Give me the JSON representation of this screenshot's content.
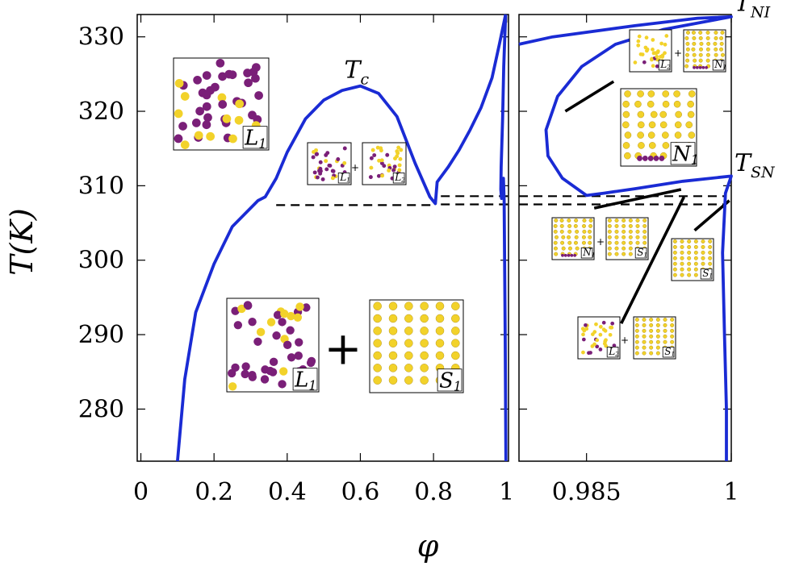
{
  "chart_data": {
    "type": "line",
    "xlabel": "φ",
    "ylabel": "T(K)",
    "ylim": [
      273,
      333
    ],
    "yticks": [
      280,
      290,
      300,
      310,
      320,
      330
    ],
    "colors": {
      "curve": "#1a2bd4",
      "tieline": "#000000",
      "particle_purple": "#7a1f78",
      "particle_yellow": "#f2d22a"
    },
    "panels": [
      {
        "name": "left",
        "xlim": [
          -0.01,
          1.005
        ],
        "xticks": [
          {
            "value": 0,
            "label": "0"
          },
          {
            "value": 0.2,
            "label": "0.2"
          },
          {
            "value": 0.4,
            "label": "0.4"
          },
          {
            "value": 0.6,
            "label": "0.6"
          },
          {
            "value": 0.8,
            "label": "0.8"
          },
          {
            "value": 1.0,
            "label": "1"
          }
        ],
        "series": [
          {
            "points": [
              [
                0.1,
                273
              ],
              [
                0.12,
                284
              ],
              [
                0.15,
                293
              ],
              [
                0.2,
                299.5
              ],
              [
                0.25,
                304.5
              ],
              [
                0.3,
                307
              ],
              [
                0.32,
                308
              ],
              [
                0.34,
                308.5
              ],
              [
                0.37,
                311
              ],
              [
                0.4,
                314.5
              ],
              [
                0.45,
                319
              ],
              [
                0.5,
                321.5
              ],
              [
                0.55,
                322.8
              ],
              [
                0.6,
                323.4
              ],
              [
                0.65,
                322.4
              ],
              [
                0.7,
                319.3
              ],
              [
                0.75,
                313
              ],
              [
                0.79,
                308.5
              ],
              [
                0.805,
                307.6
              ],
              [
                0.81,
                310.5
              ],
              [
                0.84,
                312.5
              ],
              [
                0.87,
                314.8
              ],
              [
                0.9,
                317.5
              ],
              [
                0.93,
                320.5
              ],
              [
                0.96,
                324.5
              ],
              [
                0.98,
                329
              ],
              [
                0.997,
                333
              ]
            ]
          },
          {
            "points": [
              [
                0.997,
                333
              ],
              [
                0.992,
                326
              ],
              [
                0.989,
                319
              ],
              [
                0.985,
                312.5
              ],
              [
                0.984,
                309.5
              ],
              [
                0.986,
                308.3
              ],
              [
                0.989,
                309.5
              ],
              [
                0.991,
                311
              ],
              [
                0.993,
                308
              ],
              [
                0.996,
                290
              ],
              [
                0.998,
                273
              ]
            ]
          }
        ],
        "tielines": [
          {
            "points": [
              [
                0.37,
                307.4
              ],
              [
                0.8,
                307.4
              ]
            ],
            "dashed": true
          },
          {
            "points": [
              [
                0.82,
                308.6
              ],
              [
                1.005,
                308.6
              ]
            ],
            "dashed": true
          },
          {
            "points": [
              [
                0.82,
                307.5
              ],
              [
                1.005,
                307.5
              ]
            ],
            "dashed": true
          }
        ],
        "annotations": [
          {
            "text": "T",
            "sub": "c",
            "x": 0.6,
            "y": 324.5
          }
        ]
      },
      {
        "name": "right",
        "xlim": [
          0.978,
          1.0
        ],
        "xticks": [
          {
            "value": 0.985,
            "label": "0.985"
          },
          {
            "value": 1.0,
            "label": "1"
          }
        ],
        "series": [
          {
            "points": [
              [
                0.978,
                329
              ],
              [
                0.9815,
                330
              ],
              [
                0.99,
                331.5
              ],
              [
                0.9965,
                332.5
              ],
              [
                1.0,
                332.7
              ],
              [
                0.993,
                331
              ],
              [
                0.988,
                329
              ],
              [
                0.9845,
                326
              ],
              [
                0.982,
                322
              ],
              [
                0.9808,
                317.5
              ],
              [
                0.981,
                314
              ],
              [
                0.9825,
                311
              ],
              [
                0.985,
                308.7
              ],
              [
                0.9868,
                309
              ],
              [
                0.99,
                309.6
              ],
              [
                0.995,
                310.6
              ],
              [
                1.0,
                311.3
              ],
              [
                0.9994,
                309
              ],
              [
                0.9991,
                301
              ],
              [
                0.9993,
                290
              ],
              [
                0.9995,
                280
              ],
              [
                0.9995,
                273
              ]
            ]
          }
        ],
        "tielines": [
          {
            "points": [
              [
                0.978,
                308.6
              ],
              [
                0.9995,
                308.6
              ]
            ],
            "dashed": true
          },
          {
            "points": [
              [
                0.978,
                307.5
              ],
              [
                0.9995,
                307.5
              ]
            ],
            "dashed": true
          },
          {
            "points": [
              [
                0.9828,
                320
              ],
              [
                0.9878,
                324
              ]
            ],
            "dashed": false
          },
          {
            "points": [
              [
                0.9858,
                307
              ],
              [
                0.9948,
                309.5
              ]
            ],
            "dashed": false
          },
          {
            "points": [
              [
                0.9886,
                291.5
              ],
              [
                0.9951,
                308.5
              ]
            ],
            "dashed": false
          },
          {
            "points": [
              [
                0.9962,
                304
              ],
              [
                0.9998,
                308
              ]
            ],
            "dashed": false
          }
        ],
        "annotations": [
          {
            "text": "T",
            "sub": "NI",
            "x": 1.0,
            "y": 333.5
          },
          {
            "text": "T",
            "sub": "SN",
            "x": 1.0,
            "y": 312
          }
        ]
      }
    ],
    "insets": [
      {
        "id": "L1-top",
        "label": "L",
        "sub": "1",
        "kind": "liquid",
        "size": "large"
      },
      {
        "id": "L1-mid",
        "label": "L",
        "sub": "1",
        "kind": "liquid",
        "size": "small"
      },
      {
        "id": "L2-mid",
        "label": "L",
        "sub": "2",
        "kind": "liquid2",
        "size": "small"
      },
      {
        "id": "L1-bottom",
        "label": "L",
        "sub": "1",
        "kind": "liquid",
        "size": "large"
      },
      {
        "id": "S1-bottom",
        "label": "S",
        "sub": "1",
        "kind": "smectic",
        "size": "large"
      },
      {
        "id": "L2-rtop",
        "label": "L",
        "sub": "2",
        "kind": "liquid2",
        "size": "small"
      },
      {
        "id": "N1-rtop",
        "label": "N",
        "sub": "1",
        "kind": "nematic",
        "size": "small"
      },
      {
        "id": "N1-rmid",
        "label": "N",
        "sub": "1",
        "kind": "nematic",
        "size": "large"
      },
      {
        "id": "N1-rlow",
        "label": "N",
        "sub": "1",
        "kind": "nematic",
        "size": "small"
      },
      {
        "id": "S1-rlow",
        "label": "S",
        "sub": "1",
        "kind": "smectic",
        "size": "small"
      },
      {
        "id": "S1-rright",
        "label": "S",
        "sub": "1",
        "kind": "smectic",
        "size": "small"
      },
      {
        "id": "L2-rbottom",
        "label": "L",
        "sub": "2",
        "kind": "liquid2",
        "size": "small"
      },
      {
        "id": "S1-rbottom",
        "label": "S",
        "sub": "1",
        "kind": "smectic",
        "size": "small"
      }
    ],
    "coexistence_symbols": [
      "+",
      "+",
      "+",
      "+",
      "+"
    ]
  }
}
